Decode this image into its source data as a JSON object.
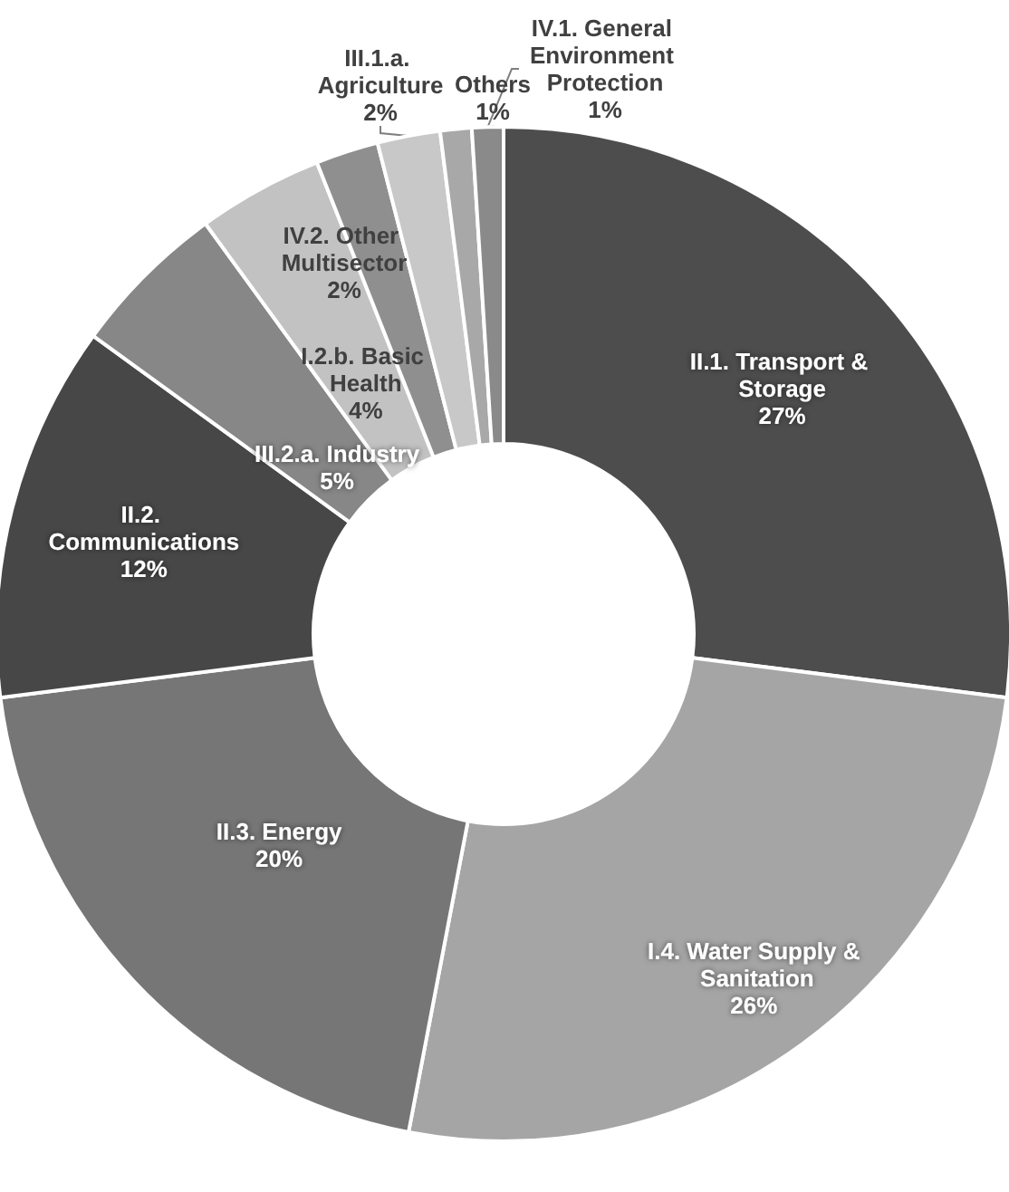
{
  "chart_data": {
    "type": "donut",
    "categories": [
      "II.1. Transport & Storage",
      "I.4. Water Supply & Sanitation",
      "II.3. Energy",
      "II.2. Communications",
      "III.2.a. Industry",
      "I.2.b. Basic Health",
      "IV.2. Other Multisector",
      "III.1.a. Agriculture",
      "Others",
      "IV.1. General Environment Protection"
    ],
    "values": [
      27,
      26,
      20,
      12,
      5,
      4,
      2,
      2,
      1,
      1
    ],
    "colors": [
      "#4d4d4d",
      "#a5a5a5",
      "#767676",
      "#474747",
      "#878787",
      "#c2c2c2",
      "#8f8f8f",
      "#c8c8c8",
      "#a8a8a8",
      "#8a8a8a"
    ],
    "value_labels": [
      "27%",
      "26%",
      "20%",
      "12%",
      "5%",
      "4%",
      "2%",
      "2%",
      "1%",
      "1%"
    ],
    "legend": false
  }
}
